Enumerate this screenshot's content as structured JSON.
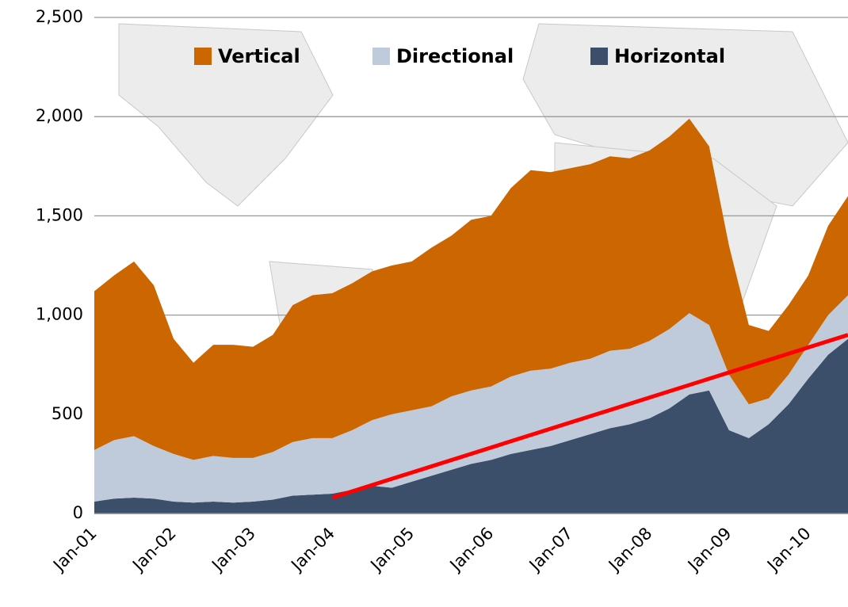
{
  "chart_data": {
    "type": "stacked_area",
    "categories": [
      "Jan-01",
      null,
      null,
      null,
      "Jan-02",
      null,
      null,
      null,
      "Jan-03",
      null,
      null,
      null,
      "Jan-04",
      null,
      null,
      null,
      "Jan-05",
      null,
      null,
      null,
      "Jan-06",
      null,
      null,
      null,
      "Jan-07",
      null,
      null,
      null,
      "Jan-08",
      null,
      null,
      null,
      "Jan-09",
      null,
      null,
      null,
      "Jan-10",
      null,
      null
    ],
    "series": [
      {
        "name": "Vertical",
        "color": "#cc6600",
        "values": [
          800,
          830,
          880,
          810,
          580,
          490,
          560,
          570,
          560,
          590,
          690,
          720,
          730,
          740,
          750,
          750,
          750,
          800,
          810,
          860,
          860,
          950,
          1010,
          990,
          980,
          980,
          980,
          960,
          960,
          970,
          980,
          900,
          650,
          400,
          340,
          350,
          350,
          450,
          500
        ]
      },
      {
        "name": "Directional",
        "color": "#bfcadb",
        "values": [
          260,
          295,
          310,
          265,
          240,
          215,
          230,
          225,
          220,
          240,
          270,
          285,
          280,
          300,
          330,
          370,
          360,
          350,
          370,
          370,
          370,
          390,
          400,
          390,
          390,
          380,
          390,
          380,
          390,
          400,
          410,
          330,
          280,
          170,
          130,
          150,
          170,
          200,
          220
        ]
      },
      {
        "name": "Horizontal",
        "color": "#3b4f6b",
        "values": [
          60,
          75,
          80,
          75,
          60,
          55,
          60,
          55,
          60,
          70,
          90,
          95,
          100,
          120,
          140,
          130,
          160,
          190,
          220,
          250,
          270,
          300,
          320,
          340,
          370,
          400,
          430,
          450,
          480,
          530,
          600,
          620,
          420,
          380,
          450,
          550,
          680,
          800,
          880
        ]
      }
    ],
    "trendline": {
      "color": "#ff0000",
      "start": "Jan-04",
      "start_value": 80,
      "end_value": 900
    },
    "ylim": [
      0,
      2500
    ],
    "yticks": [
      0,
      {
        "value": 500,
        "label": "500"
      },
      {
        "value": 1000,
        "label": "1,000"
      },
      {
        "value": 1500,
        "label": "1,500"
      },
      {
        "value": 2000,
        "label": "2,000"
      },
      {
        "value": 2500,
        "label": "2,500"
      }
    ],
    "grid": true,
    "legend": "top"
  }
}
